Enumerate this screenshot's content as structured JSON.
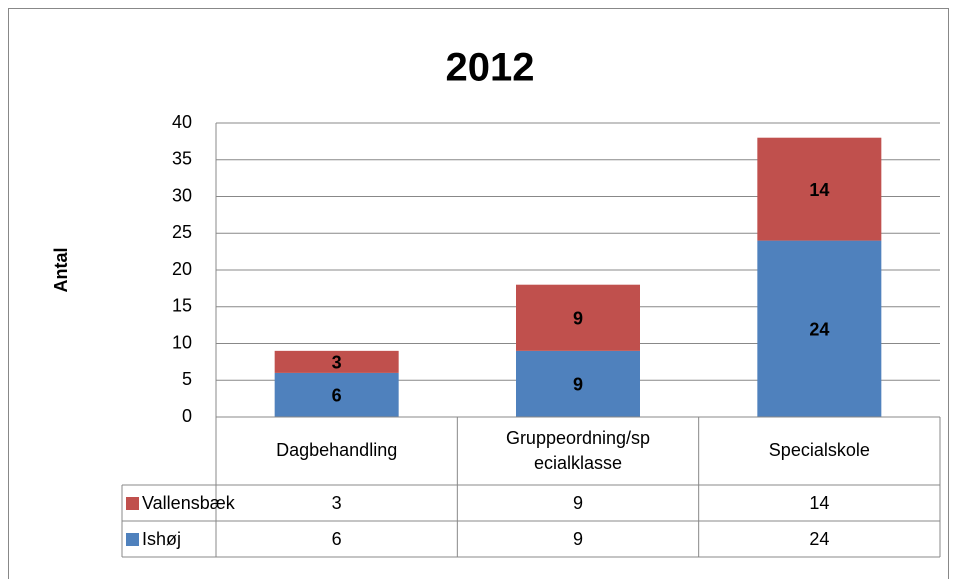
{
  "chart_data": {
    "type": "bar",
    "stacked": true,
    "title": "2012",
    "y_label": "Antal",
    "categories": [
      "Dagbehandling",
      "Gruppeordning/specialklasse",
      "Specialskole"
    ],
    "series": [
      {
        "name": "Ishøj",
        "color": "#4f81bd",
        "values": [
          6,
          9,
          24
        ]
      },
      {
        "name": "Vallensbæk",
        "color": "#c0504d",
        "values": [
          3,
          9,
          14
        ]
      }
    ],
    "ylim": [
      0,
      40
    ],
    "yticks": [
      0,
      5,
      10,
      15,
      20,
      25,
      30,
      35,
      40
    ],
    "grid": true,
    "data_table": true
  }
}
